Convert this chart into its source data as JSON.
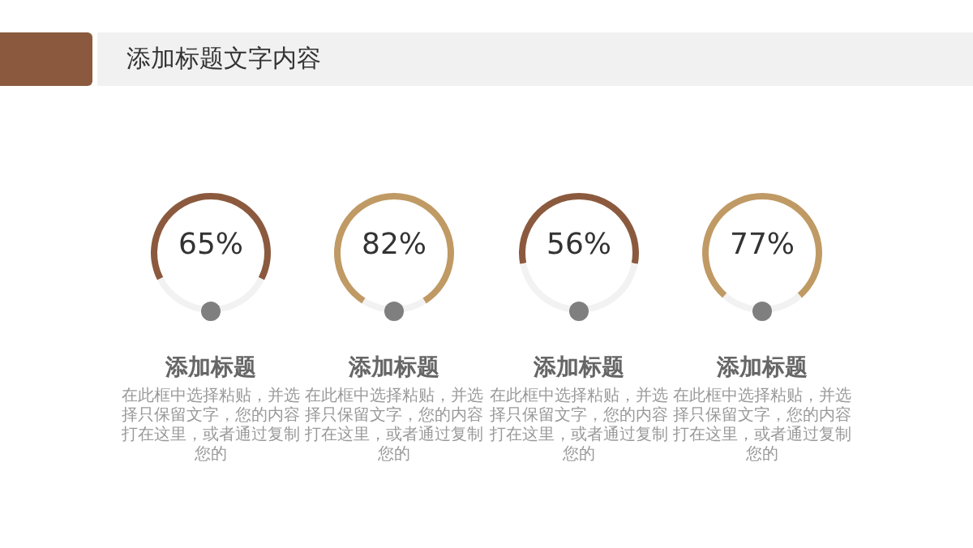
{
  "chart_data": [
    {
      "type": "other",
      "title": "添加标题文字内容"
    },
    {
      "type": "donut",
      "title": "添加标题",
      "annotations": [
        "在此框中选择粘贴，并选择只保留文字，您的内容打在这里，或者通过复制您的"
      ],
      "categories": [
        null,
        null
      ],
      "values": [
        65,
        35
      ],
      "colors": [
        "#8b5a3e",
        "#f2f2f2"
      ],
      "value_labels": [
        "65%",
        null
      ]
    },
    {
      "type": "donut",
      "title": "添加标题",
      "annotations": [
        "在此框中选择粘贴，并选择只保留文字，您的内容打在这里，或者通过复制您的"
      ],
      "categories": [
        null,
        null
      ],
      "values": [
        82,
        18
      ],
      "colors": [
        "#c09a64",
        "#f2f2f2"
      ],
      "value_labels": [
        "82%",
        null
      ]
    },
    {
      "type": "donut",
      "title": "添加标题",
      "annotations": [
        "在此框中选择粘贴，并选择只保留文字，您的内容打在这里，或者通过复制您的"
      ],
      "categories": [
        null,
        null
      ],
      "values": [
        56,
        44
      ],
      "colors": [
        "#8b5a3e",
        "#f2f2f2"
      ],
      "value_labels": [
        "56%",
        null
      ]
    },
    {
      "type": "donut",
      "title": "添加标题",
      "annotations": [
        "在此框中选择粘贴，并选择只保留文字，您的内容打在这里，或者通过复制您的"
      ],
      "categories": [
        null,
        null
      ],
      "values": [
        77,
        23
      ],
      "colors": [
        "#c09a64",
        "#f2f2f2"
      ],
      "value_labels": [
        "77%",
        null
      ]
    }
  ]
}
